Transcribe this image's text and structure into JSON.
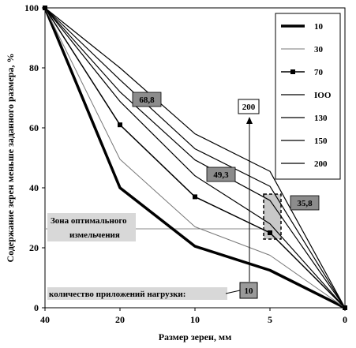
{
  "chart_data": {
    "type": "line",
    "xlabel": "Размер зерен, мм",
    "ylabel": "Содержание зерен меньше заданного размера, %",
    "categories": [
      "40",
      "20",
      "10",
      "5",
      "0"
    ],
    "ylim": [
      0,
      100
    ],
    "yticks": [
      "0",
      "20",
      "40",
      "60",
      "80",
      "100"
    ],
    "grid": false,
    "legend_position": "right",
    "series": [
      {
        "name": "10",
        "values": [
          100,
          40,
          20.5,
          12.5,
          0
        ],
        "color": "#000000",
        "width": 3.5,
        "marker": ""
      },
      {
        "name": "30",
        "values": [
          100,
          49.5,
          27,
          17.5,
          0
        ],
        "color": "#777777",
        "width": 1,
        "marker": ""
      },
      {
        "name": "70",
        "values": [
          100,
          61,
          37,
          25,
          0
        ],
        "color": "#000000",
        "width": 1.5,
        "marker": "square"
      },
      {
        "name": "100",
        "values": [
          100,
          68.8,
          44,
          28,
          0
        ],
        "color": "#000000",
        "width": 1.2,
        "marker": ""
      },
      {
        "name": "130",
        "values": [
          100,
          72,
          49.3,
          35.8,
          0
        ],
        "color": "#000000",
        "width": 1.2,
        "marker": ""
      },
      {
        "name": "150",
        "values": [
          100,
          76,
          53,
          40.5,
          0
        ],
        "color": "#000000",
        "width": 1.2,
        "marker": ""
      },
      {
        "name": "200",
        "values": [
          100,
          80,
          58,
          45.5,
          0
        ],
        "color": "#000000",
        "width": 1.2,
        "marker": ""
      }
    ],
    "legend_labels": [
      "10",
      "30",
      "70",
      "IOO",
      "130",
      "150",
      "200"
    ],
    "annotations": {
      "callout_1": "68,8",
      "callout_2": "49,3",
      "callout_3": "35,8",
      "zone_line_1": "Зона оптимального",
      "zone_line_2": "измельчения",
      "count_label": "количество приложений нагрузки:",
      "arrow_bottom": "10",
      "arrow_top": "200"
    }
  }
}
